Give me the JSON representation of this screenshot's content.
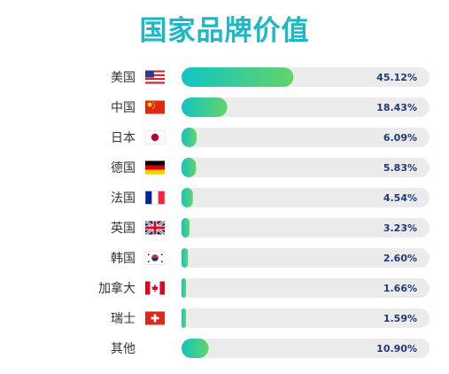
{
  "chart_data": {
    "type": "bar",
    "orientation": "horizontal",
    "title": "国家品牌价值",
    "categories": [
      "美国",
      "中国",
      "日本",
      "德国",
      "法国",
      "英国",
      "韩国",
      "加拿大",
      "瑞士",
      "其他"
    ],
    "values": [
      45.12,
      18.43,
      6.09,
      5.83,
      4.54,
      3.23,
      2.6,
      1.66,
      1.59,
      10.9
    ],
    "value_labels": [
      "45.12%",
      "18.43%",
      "6.09%",
      "5.83%",
      "4.54%",
      "3.23%",
      "2.60%",
      "1.66%",
      "1.59%",
      "10.90%"
    ],
    "flags": [
      "us-flag-icon",
      "cn-flag-icon",
      "jp-flag-icon",
      "de-flag-icon",
      "fr-flag-icon",
      "gb-flag-icon",
      "kr-flag-icon",
      "ca-flag-icon",
      "ch-flag-icon",
      ""
    ],
    "xlim": [
      0,
      100
    ],
    "grid": false,
    "colors": {
      "title": "#1bb9c6",
      "bar_gradient_start": "#10c4c4",
      "bar_gradient_end": "#62d46a",
      "track": "#ebebeb",
      "value_text": "#1f3a78",
      "label_text": "#333333"
    }
  }
}
